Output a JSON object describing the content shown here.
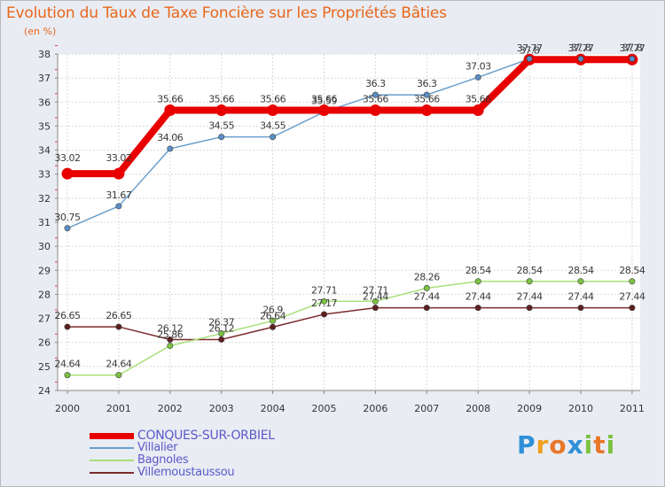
{
  "title": "Evolution du Taux de Taxe Foncière sur les Propriétés Bâties",
  "subtitle": "(en %)",
  "logo": {
    "letters": [
      "P",
      "r",
      "o",
      "x",
      "i",
      "t",
      "i"
    ],
    "colors": [
      "#2f8fd8",
      "#f0a020",
      "#e8772a",
      "#2f8fd8",
      "#7cc242",
      "#e8772a",
      "#7cc242"
    ]
  },
  "chart_data": {
    "type": "line",
    "title": "Evolution du Taux de Taxe Foncière sur les Propriétés Bâties",
    "ylabel": "(en %)",
    "xlabel": "",
    "categories": [
      "2000",
      "2001",
      "2002",
      "2003",
      "2004",
      "2005",
      "2006",
      "2007",
      "2008",
      "2009",
      "2010",
      "2011"
    ],
    "ylim": [
      24,
      38
    ],
    "yticks": [
      "24",
      "25",
      "26",
      "27",
      "28",
      "29",
      "30",
      "31",
      "32",
      "33",
      "34",
      "35",
      "36",
      "37",
      "38"
    ],
    "grid": true,
    "series": [
      {
        "name": "CONQUES-SUR-ORBIEL",
        "color": "#e80000",
        "marker": "#e80000",
        "values": [
          33.02,
          33.02,
          35.66,
          35.66,
          35.66,
          35.66,
          35.66,
          35.66,
          35.66,
          37.77,
          37.77,
          37.77
        ],
        "labels": [
          "33.02",
          "33.02",
          "35.66",
          "35.66",
          "35.66",
          "35.66",
          "35.66",
          "35.66",
          "35.66",
          "37.77",
          "37.77",
          "37.77"
        ]
      },
      {
        "name": "Villalier",
        "color": "#6b9fcb",
        "marker": "#5a8ec4",
        "values": [
          30.75,
          31.67,
          34.06,
          34.55,
          34.55,
          35.59,
          36.3,
          36.3,
          37.03,
          37.8,
          37.8,
          37.8
        ],
        "labels": [
          "30.75",
          "31.67",
          "34.06",
          "34.55",
          "34.55",
          "35.59",
          "36.3",
          "36.3",
          "37.03",
          "37.8",
          "37.8",
          "37.8"
        ]
      },
      {
        "name": "Bagnoles",
        "color": "#a8e07a",
        "marker": "#7cc242",
        "values": [
          24.64,
          24.64,
          25.86,
          26.37,
          26.9,
          27.71,
          27.71,
          28.26,
          28.54,
          28.54,
          28.54,
          28.54
        ],
        "labels": [
          "24.64",
          "24.64",
          "25.86",
          "26.37",
          "26.9",
          "27.71",
          "27.71",
          "28.26",
          "28.54",
          "28.54",
          "28.54",
          "28.54"
        ]
      },
      {
        "name": "Villemoustaussou",
        "color": "#7b2a2a",
        "marker": "#5e1f1f",
        "values": [
          26.65,
          26.65,
          26.12,
          26.12,
          26.64,
          27.17,
          27.44,
          27.44,
          27.44,
          27.44,
          27.44,
          27.44
        ],
        "labels": [
          "26.65",
          "26.65",
          "26.12",
          "26.12",
          "26.64",
          "27.17",
          "27.44",
          "27.44",
          "27.44",
          "27.44",
          "27.44",
          "27.44"
        ]
      }
    ]
  }
}
